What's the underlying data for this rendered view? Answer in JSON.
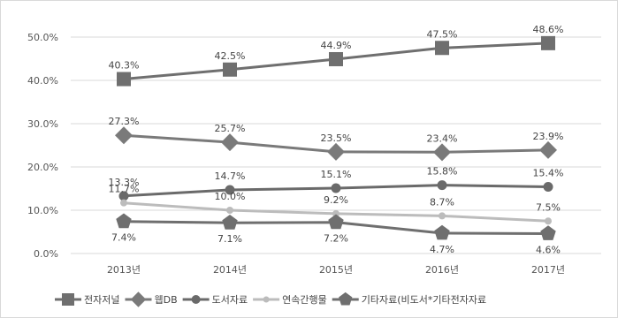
{
  "chart_data": {
    "type": "line",
    "title": "",
    "xlabel": "",
    "ylabel": "",
    "categories": [
      "2013년",
      "2014년",
      "2015년",
      "2016년",
      "2017년"
    ],
    "ylim": [
      0,
      50
    ],
    "yticks": [
      0,
      10,
      20,
      30,
      40,
      50
    ],
    "ytick_labels": [
      "0.0%",
      "10.0%",
      "20.0%",
      "30.0%",
      "40.0%",
      "50.0%"
    ],
    "grid": true,
    "legend_position": "bottom",
    "series": [
      {
        "name": "전자저널",
        "marker": "square",
        "color": "#6f6f6f",
        "values": [
          40.3,
          42.5,
          44.9,
          47.5,
          48.6
        ],
        "labels": [
          "40.3%",
          "42.5%",
          "44.9%",
          "47.5%",
          "48.6%"
        ],
        "label_pos": "above"
      },
      {
        "name": "웹DB",
        "marker": "diamond",
        "color": "#7a7a7a",
        "values": [
          27.3,
          25.7,
          23.5,
          23.4,
          23.9
        ],
        "labels": [
          "27.3%",
          "25.7%",
          "23.5%",
          "23.4%",
          "23.9%"
        ],
        "label_pos": "above"
      },
      {
        "name": "도서자료",
        "marker": "circle",
        "color": "#6a6a6a",
        "values": [
          13.3,
          14.7,
          15.1,
          15.8,
          15.4
        ],
        "labels": [
          "13.3%",
          "14.7%",
          "15.1%",
          "15.8%",
          "15.4%"
        ],
        "label_pos": "above"
      },
      {
        "name": "연속간행물",
        "marker": "circle",
        "color": "#bcbcbc",
        "values": [
          11.7,
          10.0,
          9.2,
          8.7,
          7.5
        ],
        "labels": [
          "11.7%",
          "10.0%",
          "9.2%",
          "8.7%",
          "7.5%"
        ],
        "label_pos": "above"
      },
      {
        "name": "기타자료(비도서*기타전자자료",
        "marker": "pentagon",
        "color": "#6f6f6f",
        "values": [
          7.4,
          7.1,
          7.2,
          4.7,
          4.6
        ],
        "labels": [
          "7.4%",
          "7.1%",
          "7.2%",
          "4.7%",
          "4.6%"
        ],
        "label_pos": "below"
      }
    ]
  }
}
